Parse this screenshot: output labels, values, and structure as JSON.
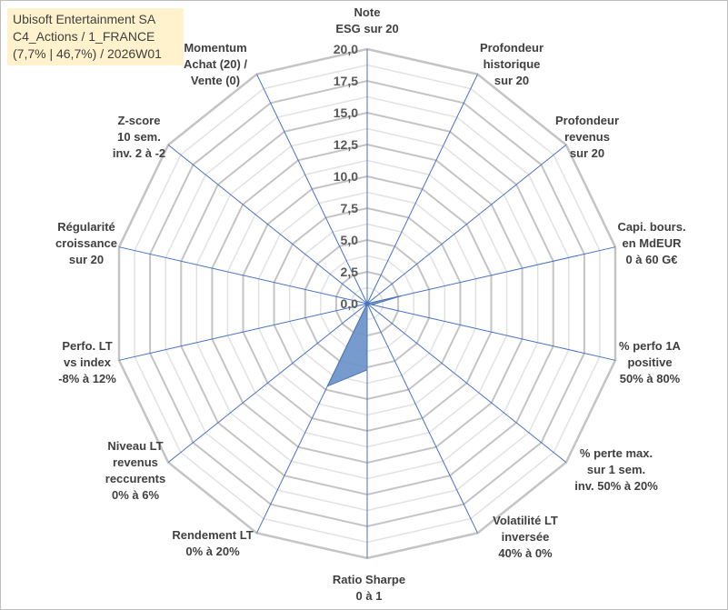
{
  "title_lines": [
    "Ubisoft Entertainment SA",
    "C4_Actions / 1_FRANCE",
    "(7,7% | 46,7%) / 2026W01"
  ],
  "colors": {
    "grid": "#c8c8c8",
    "spoke": "#4472c4",
    "fill": "#6b93c9",
    "title_bg": "#fff2cc"
  },
  "chart_data": {
    "type": "radar",
    "title": "",
    "rmin": 0,
    "rmax": 20,
    "ticks": [
      "0,0",
      "2,5",
      "5,0",
      "7,5",
      "10,0",
      "12,5",
      "15,0",
      "17,5",
      "20,0"
    ],
    "grid_levels": 16,
    "grid": true,
    "axes": [
      {
        "label": [
          "Note",
          "ESG sur 20"
        ]
      },
      {
        "label": [
          "Profondeur",
          "historique",
          "sur 20"
        ]
      },
      {
        "label": [
          "Profondeur",
          "revenus",
          "sur 20"
        ]
      },
      {
        "label": [
          "Capi. bours.",
          "en MdEUR",
          "0 à 60 G€"
        ]
      },
      {
        "label": [
          "% perfo 1A",
          "positive",
          "50% à 80%"
        ]
      },
      {
        "label": [
          "% perte max.",
          "sur 1 sem.",
          "inv. 50% à 20%"
        ]
      },
      {
        "label": [
          "Volatilité LT",
          "inversée",
          "40% à 0%"
        ]
      },
      {
        "label": [
          "Ratio Sharpe",
          "0 à 1"
        ]
      },
      {
        "label": [
          "Rendement LT",
          "0% à 20%"
        ]
      },
      {
        "label": [
          "Niveau LT",
          "revenus",
          "reccurents",
          "0% à 6%"
        ]
      },
      {
        "label": [
          "Perfo. LT",
          "vs index",
          "-8% à 12%"
        ]
      },
      {
        "label": [
          "Régularité",
          "croissance",
          "sur 20"
        ]
      },
      {
        "label": [
          "Z-score",
          "10 sem.",
          "inv. 2 à -2"
        ]
      },
      {
        "label": [
          "Momentum",
          "Achat (20) /",
          "Vente (0)"
        ]
      }
    ],
    "series": [
      {
        "values": [
          0,
          0,
          0,
          2.8,
          0.4,
          0,
          0,
          5.2,
          7.2,
          0,
          0,
          0,
          0,
          0
        ]
      }
    ]
  }
}
